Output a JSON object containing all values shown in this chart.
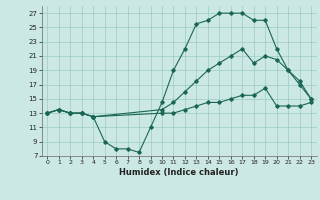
{
  "xlabel": "Humidex (Indice chaleur)",
  "bg_color": "#cce8e4",
  "grid_color": "#99ccc4",
  "line_color": "#1a6655",
  "xlim": [
    -0.5,
    23.5
  ],
  "ylim": [
    7,
    28
  ],
  "xticks": [
    0,
    1,
    2,
    3,
    4,
    5,
    6,
    7,
    8,
    9,
    10,
    11,
    12,
    13,
    14,
    15,
    16,
    17,
    18,
    19,
    20,
    21,
    22,
    23
  ],
  "yticks": [
    7,
    9,
    11,
    13,
    15,
    17,
    19,
    21,
    23,
    25,
    27
  ],
  "line1_x": [
    0,
    1,
    2,
    3,
    4,
    5,
    6,
    7,
    8,
    9,
    10,
    11,
    12,
    13,
    14,
    15,
    16,
    17,
    18,
    19,
    20,
    21,
    22,
    23
  ],
  "line1_y": [
    13,
    13.5,
    13,
    13,
    12.5,
    9,
    8,
    8,
    7.5,
    11,
    14.5,
    19,
    22,
    25.5,
    26,
    27,
    27,
    27,
    26,
    26,
    22,
    19,
    17,
    15
  ],
  "line2_x": [
    0,
    1,
    2,
    3,
    4,
    10,
    11,
    12,
    13,
    14,
    15,
    16,
    17,
    18,
    19,
    20,
    21,
    22,
    23
  ],
  "line2_y": [
    13,
    13.5,
    13,
    13,
    12.5,
    13.5,
    14.5,
    16,
    17.5,
    19,
    20,
    21,
    22,
    20,
    21,
    20.5,
    19,
    17.5,
    15
  ],
  "line3_x": [
    0,
    1,
    2,
    3,
    4,
    10,
    11,
    12,
    13,
    14,
    15,
    16,
    17,
    18,
    19,
    20,
    21,
    22,
    23
  ],
  "line3_y": [
    13,
    13.5,
    13,
    13,
    12.5,
    13,
    13,
    13.5,
    14,
    14.5,
    14.5,
    15,
    15.5,
    15.5,
    16.5,
    14,
    14,
    14,
    14.5
  ]
}
